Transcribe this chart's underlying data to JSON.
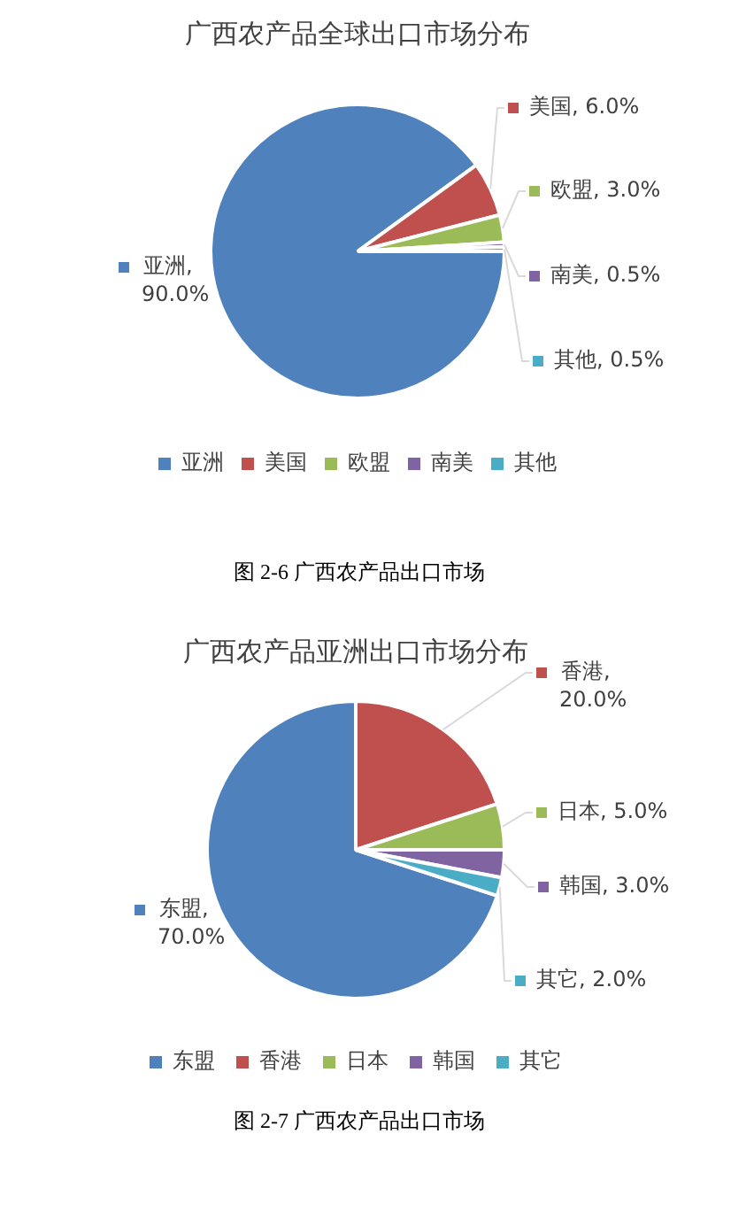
{
  "chart_data": [
    {
      "type": "pie",
      "title": "广西农产品全球出口市场分布",
      "categories": [
        "亚洲",
        "美国",
        "欧盟",
        "南美",
        "其他"
      ],
      "values": [
        90,
        6,
        3,
        0.5,
        0.5
      ],
      "colors": [
        "#4f81bd",
        "#c0504d",
        "#9bbb59",
        "#8064a2",
        "#4bacc6"
      ],
      "value_labels": [
        "亚洲, 90.0%",
        "美国, 6.0%",
        "欧盟, 3.0%",
        "南美, 0.5%",
        "其他, 0.5%"
      ],
      "legend": "bottom",
      "annotations": [
        "图 2-6 广西农产品出口市场"
      ]
    },
    {
      "type": "pie",
      "title": "广西农产品亚洲出口市场分布",
      "categories": [
        "东盟",
        "香港",
        "日本",
        "韩国",
        "其它"
      ],
      "values": [
        70,
        20,
        5,
        3,
        2
      ],
      "colors": [
        "#4f81bd",
        "#c0504d",
        "#9bbb59",
        "#8064a2",
        "#4bacc6"
      ],
      "value_labels": [
        "东盟, 70.0%",
        "香港, 20.0%",
        "日本, 5.0%",
        "韩国, 3.0%",
        "其它, 2.0%"
      ],
      "legend": "bottom",
      "annotations": [
        "图 2-7 广西农产品出口市场"
      ]
    }
  ]
}
